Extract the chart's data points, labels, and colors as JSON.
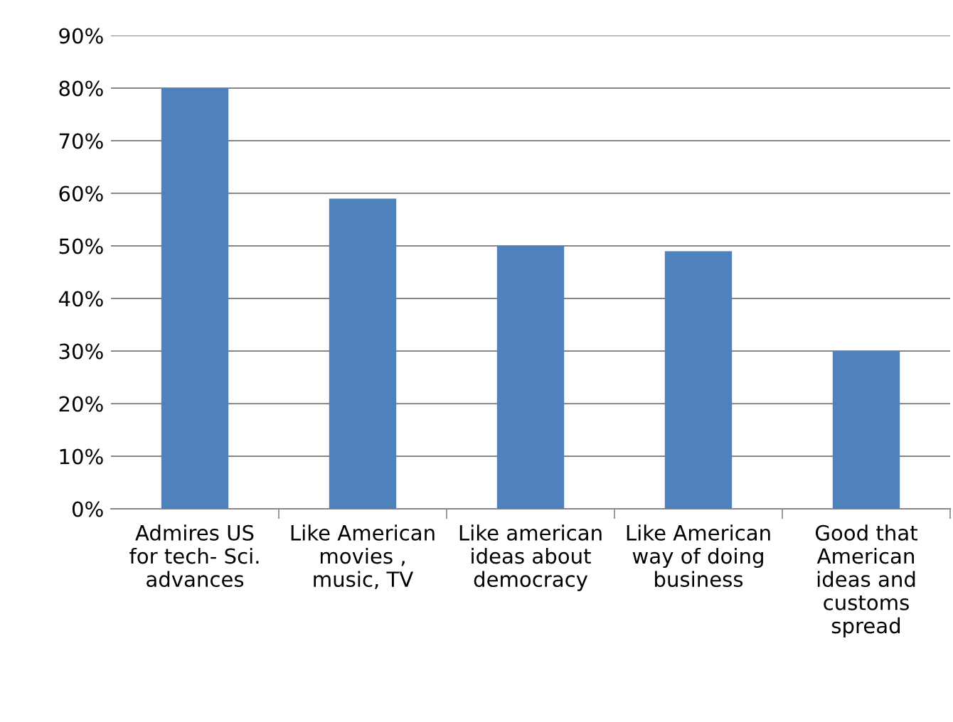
{
  "chart_data": {
    "type": "bar",
    "categories": [
      "Admires US\nfor tech- Sci.\nadvances",
      "Like American\nmovies ,\nmusic, TV",
      "Like american\nideas about\ndemocracy",
      "Like American\nway of doing\nbusiness",
      "Good that\nAmerican\nideas and\ncustoms\nspread"
    ],
    "values": [
      80,
      59,
      50,
      49,
      30
    ],
    "color": "#4f81bd",
    "ylim": [
      0,
      90
    ],
    "yticks": [
      {
        "value": 0,
        "label": "0%"
      },
      {
        "value": 10,
        "label": "10%"
      },
      {
        "value": 20,
        "label": "20%"
      },
      {
        "value": 30,
        "label": "30%"
      },
      {
        "value": 40,
        "label": "40%"
      },
      {
        "value": 50,
        "label": "50%"
      },
      {
        "value": 60,
        "label": "60%"
      },
      {
        "value": 70,
        "label": "70%"
      },
      {
        "value": 80,
        "label": "80%"
      },
      {
        "value": 90,
        "label": "90%"
      }
    ],
    "grid": "y",
    "legend": false
  }
}
